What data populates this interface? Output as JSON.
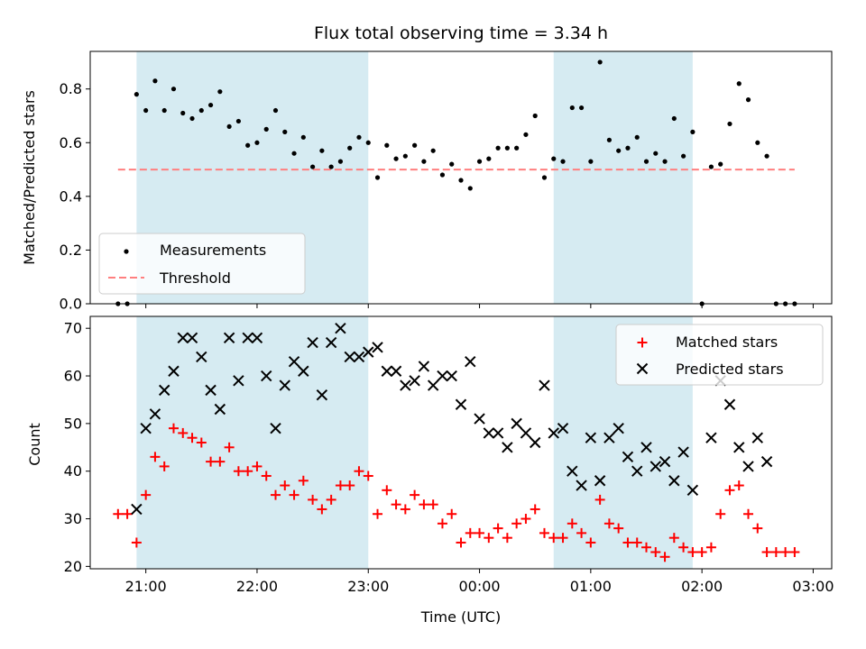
{
  "title": "Flux total observing time = 3.34 h",
  "colors": {
    "shade": "#add8e6",
    "threshold": "#ff7f7f",
    "matched": "#ff0000",
    "predicted": "#000000",
    "measurement": "#000000"
  },
  "chart_data": [
    {
      "type": "scatter",
      "ylabel": "Matched/Predicted stars",
      "ylim": [
        0,
        0.94
      ],
      "yticks": [
        "0.0",
        "0.2",
        "0.4",
        "0.6",
        "0.8"
      ],
      "legend": {
        "placement": "lower-left",
        "entries": [
          "Measurements",
          "Threshold"
        ]
      },
      "threshold": {
        "name": "Threshold",
        "value": 0.5,
        "x_start": "20:45",
        "x_end": "02:50"
      },
      "shaded_intervals": [
        [
          "20:55",
          "23:00"
        ],
        [
          "00:40",
          "01:55"
        ]
      ],
      "series": [
        {
          "name": "Measurements",
          "points": [
            [
              "20:45",
              0.0
            ],
            [
              "20:50",
              0.0
            ],
            [
              "20:55",
              0.78
            ],
            [
              "21:00",
              0.72
            ],
            [
              "21:05",
              0.83
            ],
            [
              "21:10",
              0.72
            ],
            [
              "21:15",
              0.8
            ],
            [
              "21:20",
              0.71
            ],
            [
              "21:25",
              0.69
            ],
            [
              "21:30",
              0.72
            ],
            [
              "21:35",
              0.74
            ],
            [
              "21:40",
              0.79
            ],
            [
              "21:45",
              0.66
            ],
            [
              "21:50",
              0.68
            ],
            [
              "21:55",
              0.59
            ],
            [
              "22:00",
              0.6
            ],
            [
              "22:05",
              0.65
            ],
            [
              "22:10",
              0.72
            ],
            [
              "22:15",
              0.64
            ],
            [
              "22:20",
              0.56
            ],
            [
              "22:25",
              0.62
            ],
            [
              "22:30",
              0.51
            ],
            [
              "22:35",
              0.57
            ],
            [
              "22:40",
              0.51
            ],
            [
              "22:45",
              0.53
            ],
            [
              "22:50",
              0.58
            ],
            [
              "22:55",
              0.62
            ],
            [
              "23:00",
              0.6
            ],
            [
              "23:05",
              0.47
            ],
            [
              "23:10",
              0.59
            ],
            [
              "23:15",
              0.54
            ],
            [
              "23:20",
              0.55
            ],
            [
              "23:25",
              0.59
            ],
            [
              "23:30",
              0.53
            ],
            [
              "23:35",
              0.57
            ],
            [
              "23:40",
              0.48
            ],
            [
              "23:45",
              0.52
            ],
            [
              "23:50",
              0.46
            ],
            [
              "23:55",
              0.43
            ],
            [
              "00:00",
              0.53
            ],
            [
              "00:05",
              0.54
            ],
            [
              "00:10",
              0.58
            ],
            [
              "00:15",
              0.58
            ],
            [
              "00:20",
              0.58
            ],
            [
              "00:25",
              0.63
            ],
            [
              "00:30",
              0.7
            ],
            [
              "00:35",
              0.47
            ],
            [
              "00:40",
              0.54
            ],
            [
              "00:45",
              0.53
            ],
            [
              "00:50",
              0.73
            ],
            [
              "00:55",
              0.73
            ],
            [
              "01:00",
              0.53
            ],
            [
              "01:05",
              0.9
            ],
            [
              "01:10",
              0.61
            ],
            [
              "01:15",
              0.57
            ],
            [
              "01:20",
              0.58
            ],
            [
              "01:25",
              0.62
            ],
            [
              "01:30",
              0.53
            ],
            [
              "01:35",
              0.56
            ],
            [
              "01:40",
              0.53
            ],
            [
              "01:45",
              0.69
            ],
            [
              "01:50",
              0.55
            ],
            [
              "01:55",
              0.64
            ],
            [
              "02:00",
              0.0
            ],
            [
              "02:05",
              0.51
            ],
            [
              "02:10",
              0.52
            ],
            [
              "02:15",
              0.67
            ],
            [
              "02:20",
              0.82
            ],
            [
              "02:25",
              0.76
            ],
            [
              "02:30",
              0.6
            ],
            [
              "02:35",
              0.55
            ],
            [
              "02:40",
              0.0
            ],
            [
              "02:45",
              0.0
            ],
            [
              "02:50",
              0.0
            ]
          ]
        }
      ]
    },
    {
      "type": "scatter",
      "ylabel": "Count",
      "xlabel": "Time (UTC)",
      "ylim": [
        19.5,
        72.5
      ],
      "yticks": [
        "20",
        "30",
        "40",
        "50",
        "60",
        "70"
      ],
      "xticks": [
        "21:00",
        "22:00",
        "23:00",
        "00:00",
        "01:00",
        "02:00",
        "03:00"
      ],
      "x_range": [
        "20:30",
        "03:10"
      ],
      "legend": {
        "placement": "upper-right",
        "entries": [
          "Matched stars",
          "Predicted stars"
        ]
      },
      "shaded_intervals": [
        [
          "20:55",
          "23:00"
        ],
        [
          "00:40",
          "01:55"
        ]
      ],
      "series": [
        {
          "name": "Matched stars",
          "marker": "plus",
          "points": [
            [
              "20:45",
              31
            ],
            [
              "20:50",
              31
            ],
            [
              "20:55",
              25
            ],
            [
              "21:00",
              35
            ],
            [
              "21:05",
              43
            ],
            [
              "21:10",
              41
            ],
            [
              "21:15",
              49
            ],
            [
              "21:20",
              48
            ],
            [
              "21:25",
              47
            ],
            [
              "21:30",
              46
            ],
            [
              "21:35",
              42
            ],
            [
              "21:40",
              42
            ],
            [
              "21:45",
              45
            ],
            [
              "21:50",
              40
            ],
            [
              "21:55",
              40
            ],
            [
              "22:00",
              41
            ],
            [
              "22:05",
              39
            ],
            [
              "22:10",
              35
            ],
            [
              "22:15",
              37
            ],
            [
              "22:20",
              35
            ],
            [
              "22:25",
              38
            ],
            [
              "22:30",
              34
            ],
            [
              "22:35",
              32
            ],
            [
              "22:40",
              34
            ],
            [
              "22:45",
              37
            ],
            [
              "22:50",
              37
            ],
            [
              "22:55",
              40
            ],
            [
              "23:00",
              39
            ],
            [
              "23:05",
              31
            ],
            [
              "23:10",
              36
            ],
            [
              "23:15",
              33
            ],
            [
              "23:20",
              32
            ],
            [
              "23:25",
              35
            ],
            [
              "23:30",
              33
            ],
            [
              "23:35",
              33
            ],
            [
              "23:40",
              29
            ],
            [
              "23:45",
              31
            ],
            [
              "23:50",
              25
            ],
            [
              "23:55",
              27
            ],
            [
              "00:00",
              27
            ],
            [
              "00:05",
              26
            ],
            [
              "00:10",
              28
            ],
            [
              "00:15",
              26
            ],
            [
              "00:20",
              29
            ],
            [
              "00:25",
              30
            ],
            [
              "00:30",
              32
            ],
            [
              "00:35",
              27
            ],
            [
              "00:40",
              26
            ],
            [
              "00:45",
              26
            ],
            [
              "00:50",
              29
            ],
            [
              "00:55",
              27
            ],
            [
              "01:00",
              25
            ],
            [
              "01:05",
              34
            ],
            [
              "01:10",
              29
            ],
            [
              "01:15",
              28
            ],
            [
              "01:20",
              25
            ],
            [
              "01:25",
              25
            ],
            [
              "01:30",
              24
            ],
            [
              "01:35",
              23
            ],
            [
              "01:40",
              22
            ],
            [
              "01:45",
              26
            ],
            [
              "01:50",
              24
            ],
            [
              "01:55",
              23
            ],
            [
              "02:00",
              23
            ],
            [
              "02:05",
              24
            ],
            [
              "02:10",
              31
            ],
            [
              "02:15",
              36
            ],
            [
              "02:20",
              37
            ],
            [
              "02:25",
              31
            ],
            [
              "02:30",
              28
            ],
            [
              "02:35",
              23
            ],
            [
              "02:40",
              23
            ],
            [
              "02:45",
              23
            ],
            [
              "02:50",
              23
            ]
          ]
        },
        {
          "name": "Predicted stars",
          "marker": "x",
          "points": [
            [
              "20:55",
              32
            ],
            [
              "21:00",
              49
            ],
            [
              "21:05",
              52
            ],
            [
              "21:10",
              57
            ],
            [
              "21:15",
              61
            ],
            [
              "21:20",
              68
            ],
            [
              "21:25",
              68
            ],
            [
              "21:30",
              64
            ],
            [
              "21:35",
              57
            ],
            [
              "21:40",
              53
            ],
            [
              "21:45",
              68
            ],
            [
              "21:50",
              59
            ],
            [
              "21:55",
              68
            ],
            [
              "22:00",
              68
            ],
            [
              "22:05",
              60
            ],
            [
              "22:10",
              49
            ],
            [
              "22:15",
              58
            ],
            [
              "22:20",
              63
            ],
            [
              "22:25",
              61
            ],
            [
              "22:30",
              67
            ],
            [
              "22:35",
              56
            ],
            [
              "22:40",
              67
            ],
            [
              "22:45",
              70
            ],
            [
              "22:50",
              64
            ],
            [
              "22:55",
              64
            ],
            [
              "23:00",
              65
            ],
            [
              "23:05",
              66
            ],
            [
              "23:10",
              61
            ],
            [
              "23:15",
              61
            ],
            [
              "23:20",
              58
            ],
            [
              "23:25",
              59
            ],
            [
              "23:30",
              62
            ],
            [
              "23:35",
              58
            ],
            [
              "23:40",
              60
            ],
            [
              "23:45",
              60
            ],
            [
              "23:50",
              54
            ],
            [
              "23:55",
              63
            ],
            [
              "00:00",
              51
            ],
            [
              "00:05",
              48
            ],
            [
              "00:10",
              48
            ],
            [
              "00:15",
              45
            ],
            [
              "00:20",
              50
            ],
            [
              "00:25",
              48
            ],
            [
              "00:30",
              46
            ],
            [
              "00:35",
              58
            ],
            [
              "00:40",
              48
            ],
            [
              "00:45",
              49
            ],
            [
              "00:50",
              40
            ],
            [
              "00:55",
              37
            ],
            [
              "01:00",
              47
            ],
            [
              "01:05",
              38
            ],
            [
              "01:10",
              47
            ],
            [
              "01:15",
              49
            ],
            [
              "01:20",
              43
            ],
            [
              "01:25",
              40
            ],
            [
              "01:30",
              45
            ],
            [
              "01:35",
              41
            ],
            [
              "01:40",
              42
            ],
            [
              "01:45",
              38
            ],
            [
              "01:50",
              44
            ],
            [
              "01:55",
              36
            ],
            [
              "02:05",
              47
            ],
            [
              "02:10",
              59
            ],
            [
              "02:15",
              54
            ],
            [
              "02:20",
              45
            ],
            [
              "02:25",
              41
            ],
            [
              "02:30",
              47
            ],
            [
              "02:35",
              42
            ]
          ]
        }
      ]
    }
  ]
}
